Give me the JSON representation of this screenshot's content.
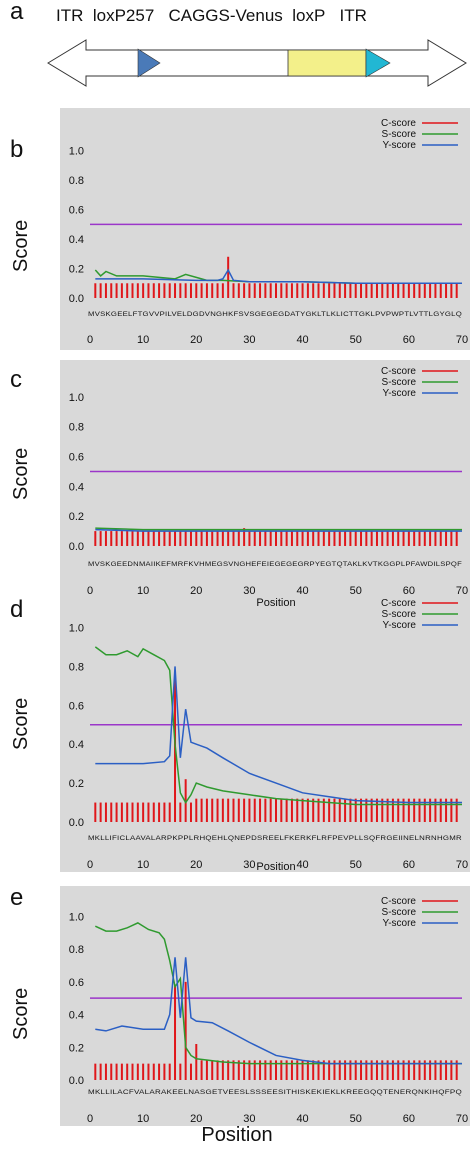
{
  "panel_labels": [
    "a",
    "b",
    "c",
    "d",
    "e"
  ],
  "construct": {
    "labels": [
      "ITR",
      "loxP257",
      "CAGGS-Venus",
      "loxP",
      "ITR"
    ],
    "colors": {
      "loxP257": "#4a7ab8",
      "venus": "#f3f08a",
      "loxP": "#22b7d3"
    }
  },
  "y_label": "Score",
  "bottom_label": "Position",
  "legend": [
    "C-score",
    "S-score",
    "Y-score"
  ],
  "colors": {
    "c": "#e0161a",
    "s": "#2f9a2f",
    "y": "#2b5fc4",
    "threshold": "#9b36c9"
  },
  "chart_data": [
    {
      "panel": "b",
      "type": "line",
      "xlim": [
        0,
        70
      ],
      "ylim": [
        0,
        1.1
      ],
      "xticks": [
        0,
        10,
        20,
        30,
        40,
        50,
        60,
        70
      ],
      "yticks": [
        0.0,
        0.2,
        0.4,
        0.6,
        0.8,
        1.0
      ],
      "threshold": 0.5,
      "sequence": "MVSKGEELFTGVVPILVELDGDVNGHKFSVSGEGEGDATYGKLTLKLICTTGKLPVPWPTLVTTLGYGLQ",
      "xlabel": "",
      "c_score": [
        0.1,
        0.1,
        0.1,
        0.1,
        0.1,
        0.1,
        0.1,
        0.1,
        0.1,
        0.1,
        0.1,
        0.1,
        0.1,
        0.1,
        0.1,
        0.1,
        0.1,
        0.1,
        0.1,
        0.1,
        0.1,
        0.1,
        0.1,
        0.1,
        0.1,
        0.28,
        0.1,
        0.1,
        0.1,
        0.1,
        0.1,
        0.1,
        0.1,
        0.1,
        0.1,
        0.1,
        0.1,
        0.1,
        0.1,
        0.1,
        0.1,
        0.1,
        0.1,
        0.1,
        0.1,
        0.1,
        0.1,
        0.1,
        0.1,
        0.1,
        0.1,
        0.1,
        0.1,
        0.1,
        0.1,
        0.1,
        0.1,
        0.1,
        0.1,
        0.1,
        0.1,
        0.1,
        0.1,
        0.1,
        0.1,
        0.1,
        0.1,
        0.1,
        0.1
      ],
      "s_score": [
        [
          1,
          0.19
        ],
        [
          2,
          0.15
        ],
        [
          3,
          0.18
        ],
        [
          5,
          0.15
        ],
        [
          10,
          0.15
        ],
        [
          13,
          0.14
        ],
        [
          16,
          0.13
        ],
        [
          18,
          0.16
        ],
        [
          20,
          0.14
        ],
        [
          22,
          0.12
        ],
        [
          25,
          0.12
        ],
        [
          30,
          0.11
        ],
        [
          40,
          0.11
        ],
        [
          50,
          0.1
        ],
        [
          60,
          0.1
        ],
        [
          70,
          0.1
        ]
      ],
      "y_score": [
        [
          1,
          0.13
        ],
        [
          10,
          0.13
        ],
        [
          20,
          0.12
        ],
        [
          24,
          0.12
        ],
        [
          25,
          0.13
        ],
        [
          26,
          0.19
        ],
        [
          27,
          0.12
        ],
        [
          30,
          0.11
        ],
        [
          40,
          0.11
        ],
        [
          50,
          0.1
        ],
        [
          60,
          0.1
        ],
        [
          70,
          0.1
        ]
      ]
    },
    {
      "panel": "c",
      "type": "line",
      "xlim": [
        0,
        70
      ],
      "ylim": [
        0,
        1.1
      ],
      "xticks": [
        0,
        10,
        20,
        30,
        40,
        50,
        60,
        70
      ],
      "yticks": [
        0.0,
        0.2,
        0.4,
        0.6,
        0.8,
        1.0
      ],
      "threshold": 0.5,
      "sequence": "MVSKGEEDNMAIIKEFMRFKVHMEGSVNGHEFEIEGEGEGRPYEGTQTAKLKVTKGGPLPFAWDILSPQF",
      "xlabel": "Position",
      "c_score": [
        0.1,
        0.1,
        0.1,
        0.1,
        0.1,
        0.1,
        0.1,
        0.1,
        0.1,
        0.1,
        0.1,
        0.1,
        0.1,
        0.1,
        0.1,
        0.1,
        0.1,
        0.1,
        0.1,
        0.1,
        0.1,
        0.1,
        0.1,
        0.1,
        0.1,
        0.1,
        0.1,
        0.1,
        0.12,
        0.1,
        0.1,
        0.1,
        0.1,
        0.1,
        0.1,
        0.1,
        0.1,
        0.1,
        0.1,
        0.1,
        0.1,
        0.1,
        0.1,
        0.1,
        0.1,
        0.1,
        0.1,
        0.1,
        0.1,
        0.1,
        0.1,
        0.1,
        0.1,
        0.1,
        0.1,
        0.1,
        0.1,
        0.1,
        0.1,
        0.1,
        0.1,
        0.1,
        0.1,
        0.1,
        0.1,
        0.1,
        0.1,
        0.1,
        0.1
      ],
      "s_score": [
        [
          1,
          0.12
        ],
        [
          10,
          0.11
        ],
        [
          20,
          0.11
        ],
        [
          30,
          0.11
        ],
        [
          40,
          0.11
        ],
        [
          50,
          0.11
        ],
        [
          60,
          0.11
        ],
        [
          70,
          0.11
        ]
      ],
      "y_score": [
        [
          1,
          0.11
        ],
        [
          10,
          0.1
        ],
        [
          20,
          0.1
        ],
        [
          30,
          0.1
        ],
        [
          40,
          0.1
        ],
        [
          50,
          0.1
        ],
        [
          60,
          0.1
        ],
        [
          70,
          0.1
        ]
      ]
    },
    {
      "panel": "d",
      "type": "line",
      "xlim": [
        0,
        70
      ],
      "ylim": [
        0,
        1.1
      ],
      "xticks": [
        0,
        10,
        20,
        30,
        40,
        50,
        60,
        70
      ],
      "yticks": [
        0.0,
        0.2,
        0.4,
        0.6,
        0.8,
        1.0
      ],
      "threshold": 0.5,
      "sequence": "MKLLIFICLAAVALARPKPPLRHQEHLQNEPDSREELFKERKFLRFPEVPLLSQFRGEIINELNRNHGMR",
      "xlabel": "Position",
      "c_score": [
        0.1,
        0.1,
        0.1,
        0.1,
        0.1,
        0.1,
        0.1,
        0.1,
        0.1,
        0.1,
        0.1,
        0.1,
        0.1,
        0.1,
        0.1,
        0.75,
        0.1,
        0.22,
        0.1,
        0.12,
        0.12,
        0.12,
        0.12,
        0.12,
        0.12,
        0.12,
        0.12,
        0.12,
        0.12,
        0.12,
        0.12,
        0.12,
        0.12,
        0.12,
        0.12,
        0.12,
        0.12,
        0.12,
        0.12,
        0.12,
        0.12,
        0.12,
        0.12,
        0.12,
        0.12,
        0.12,
        0.12,
        0.12,
        0.12,
        0.12,
        0.12,
        0.12,
        0.12,
        0.12,
        0.12,
        0.12,
        0.12,
        0.12,
        0.12,
        0.12,
        0.12,
        0.12,
        0.12,
        0.12,
        0.12,
        0.12,
        0.12,
        0.12,
        0.12
      ],
      "s_score": [
        [
          1,
          0.9
        ],
        [
          3,
          0.86
        ],
        [
          5,
          0.86
        ],
        [
          7,
          0.88
        ],
        [
          9,
          0.85
        ],
        [
          10,
          0.89
        ],
        [
          12,
          0.86
        ],
        [
          14,
          0.83
        ],
        [
          15,
          0.78
        ],
        [
          16,
          0.4
        ],
        [
          17,
          0.15
        ],
        [
          18,
          0.1
        ],
        [
          19,
          0.14
        ],
        [
          20,
          0.2
        ],
        [
          22,
          0.18
        ],
        [
          25,
          0.16
        ],
        [
          30,
          0.14
        ],
        [
          35,
          0.12
        ],
        [
          40,
          0.11
        ],
        [
          50,
          0.09
        ],
        [
          60,
          0.09
        ],
        [
          70,
          0.09
        ]
      ],
      "y_score": [
        [
          1,
          0.3
        ],
        [
          5,
          0.3
        ],
        [
          10,
          0.3
        ],
        [
          14,
          0.31
        ],
        [
          15,
          0.34
        ],
        [
          16,
          0.8
        ],
        [
          17,
          0.33
        ],
        [
          18,
          0.58
        ],
        [
          19,
          0.41
        ],
        [
          20,
          0.4
        ],
        [
          22,
          0.38
        ],
        [
          25,
          0.33
        ],
        [
          30,
          0.25
        ],
        [
          35,
          0.2
        ],
        [
          40,
          0.15
        ],
        [
          45,
          0.13
        ],
        [
          50,
          0.11
        ],
        [
          60,
          0.1
        ],
        [
          70,
          0.1
        ]
      ]
    },
    {
      "panel": "e",
      "type": "line",
      "xlim": [
        0,
        70
      ],
      "ylim": [
        0,
        1.1
      ],
      "xticks": [
        0,
        10,
        20,
        30,
        40,
        50,
        60,
        70
      ],
      "yticks": [
        0.0,
        0.2,
        0.4,
        0.6,
        0.8,
        1.0
      ],
      "threshold": 0.5,
      "sequence": "MKLLILACFVALARAKEELNASGETVEESLSSSEESITHISKEKIEKLKREEGQQTENERQNKIHQFPQ",
      "xlabel": "",
      "c_score": [
        0.1,
        0.1,
        0.1,
        0.1,
        0.1,
        0.1,
        0.1,
        0.1,
        0.1,
        0.1,
        0.1,
        0.1,
        0.1,
        0.1,
        0.1,
        0.58,
        0.1,
        0.6,
        0.1,
        0.22,
        0.12,
        0.12,
        0.12,
        0.12,
        0.12,
        0.12,
        0.12,
        0.12,
        0.12,
        0.12,
        0.12,
        0.12,
        0.12,
        0.12,
        0.12,
        0.12,
        0.12,
        0.12,
        0.12,
        0.12,
        0.12,
        0.12,
        0.12,
        0.12,
        0.12,
        0.12,
        0.12,
        0.12,
        0.12,
        0.12,
        0.12,
        0.12,
        0.12,
        0.12,
        0.12,
        0.12,
        0.12,
        0.12,
        0.12,
        0.12,
        0.12,
        0.12,
        0.12,
        0.12,
        0.12,
        0.12,
        0.12,
        0.12,
        0.12
      ],
      "s_score": [
        [
          1,
          0.94
        ],
        [
          3,
          0.91
        ],
        [
          5,
          0.91
        ],
        [
          7,
          0.93
        ],
        [
          9,
          0.96
        ],
        [
          11,
          0.92
        ],
        [
          13,
          0.9
        ],
        [
          14,
          0.86
        ],
        [
          15,
          0.73
        ],
        [
          16,
          0.57
        ],
        [
          17,
          0.62
        ],
        [
          18,
          0.2
        ],
        [
          19,
          0.15
        ],
        [
          20,
          0.13
        ],
        [
          25,
          0.11
        ],
        [
          30,
          0.1
        ],
        [
          40,
          0.1
        ],
        [
          50,
          0.1
        ],
        [
          60,
          0.1
        ],
        [
          70,
          0.1
        ]
      ],
      "y_score": [
        [
          1,
          0.31
        ],
        [
          3,
          0.3
        ],
        [
          6,
          0.33
        ],
        [
          10,
          0.31
        ],
        [
          14,
          0.31
        ],
        [
          15,
          0.4
        ],
        [
          16,
          0.75
        ],
        [
          17,
          0.38
        ],
        [
          18,
          0.75
        ],
        [
          19,
          0.38
        ],
        [
          20,
          0.36
        ],
        [
          23,
          0.35
        ],
        [
          26,
          0.3
        ],
        [
          30,
          0.23
        ],
        [
          35,
          0.15
        ],
        [
          40,
          0.12
        ],
        [
          45,
          0.1
        ],
        [
          50,
          0.1
        ],
        [
          60,
          0.1
        ],
        [
          70,
          0.1
        ]
      ]
    }
  ]
}
